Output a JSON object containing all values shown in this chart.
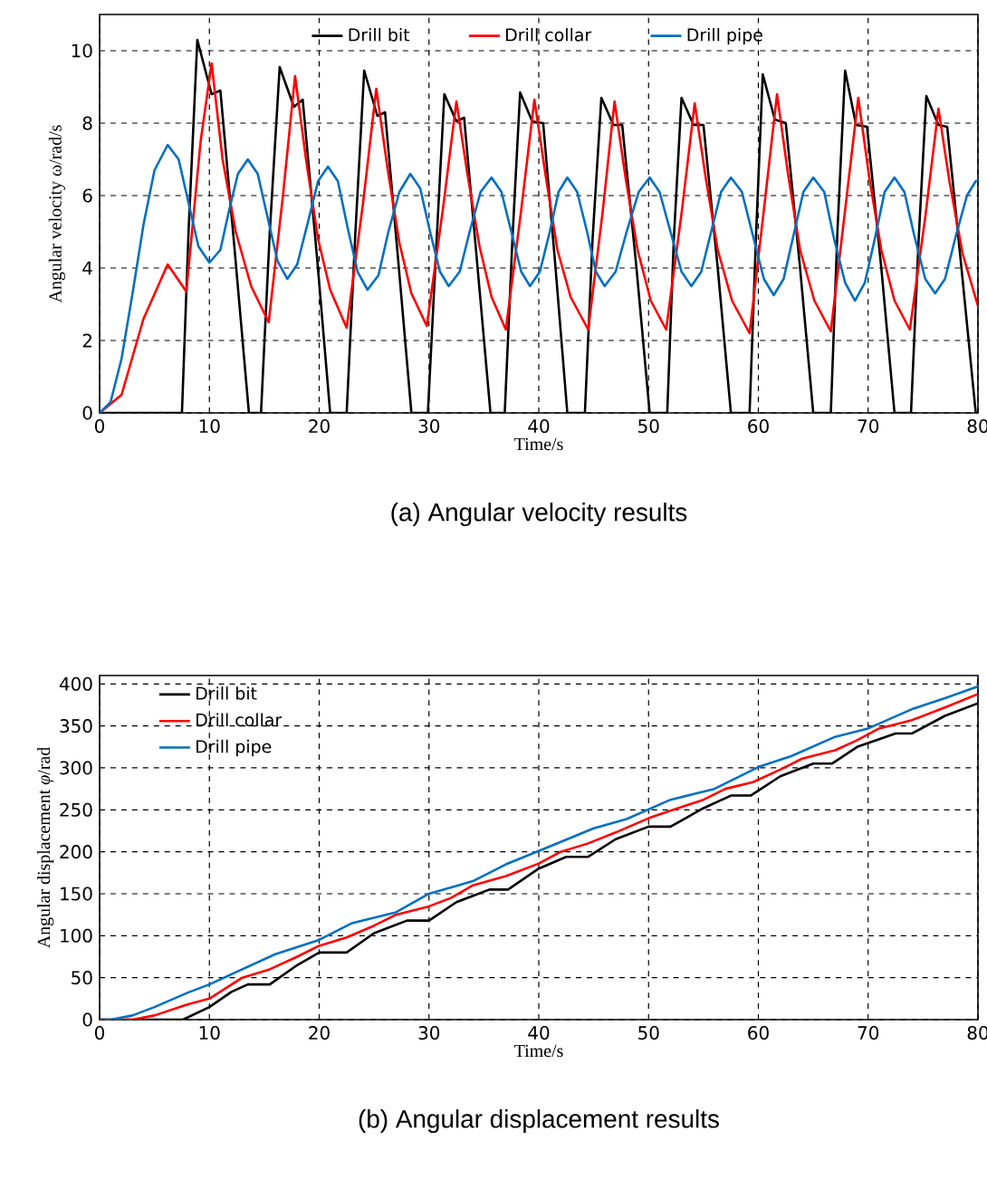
{
  "chart_data": [
    {
      "type": "line",
      "title": "(a) Angular velocity results",
      "xlabel": "Time/s",
      "ylabel": "Angular  velocity  ω/rad/s",
      "xlim": [
        0,
        80
      ],
      "ylim": [
        0,
        11
      ],
      "xticks": [
        0,
        10,
        20,
        30,
        40,
        50,
        60,
        70,
        80
      ],
      "yticks": [
        0,
        2,
        4,
        6,
        8,
        10
      ],
      "grid": true,
      "legend": "top",
      "line_style": "solid",
      "series": [
        {
          "name": "Drill bit",
          "color": "#000000",
          "x": [
            0,
            7.5,
            8.1,
            8.9,
            10.2,
            11.0,
            12.3,
            13.6,
            14.7,
            15.5,
            16.4,
            17.7,
            18.5,
            19.8,
            21.0,
            22.5,
            23.3,
            24.1,
            25.3,
            26.0,
            27.2,
            28.4,
            29.9,
            30.7,
            31.4,
            32.5,
            33.2,
            34.4,
            35.6,
            36.9,
            37.6,
            38.3,
            39.4,
            40.4,
            41.5,
            42.6,
            44.2,
            44.9,
            45.7,
            46.8,
            47.6,
            48.9,
            50.1,
            51.7,
            52.3,
            53.0,
            54.1,
            55.0,
            56.3,
            57.5,
            59.2,
            59.8,
            60.4,
            61.5,
            62.5,
            63.8,
            65.0,
            66.6,
            67.2,
            67.9,
            68.9,
            69.9,
            71.2,
            72.4,
            73.9,
            74.6,
            75.3,
            76.4,
            77.2,
            78.5,
            79.8,
            80
          ],
          "values": [
            0,
            0,
            5,
            10.3,
            8.8,
            8.9,
            4.5,
            0,
            0,
            5,
            9.55,
            8.45,
            8.65,
            4.3,
            0,
            0,
            5,
            9.45,
            8.2,
            8.3,
            4.2,
            0,
            0,
            4.8,
            8.8,
            8.05,
            8.15,
            4.1,
            0,
            0,
            4.8,
            8.85,
            8.05,
            8.0,
            4.1,
            0,
            0,
            4.8,
            8.7,
            7.95,
            7.95,
            4.0,
            0,
            0,
            4.8,
            8.7,
            7.95,
            7.95,
            4.0,
            0,
            0,
            5,
            9.35,
            8.1,
            8.0,
            4.0,
            0,
            0,
            5,
            9.45,
            7.95,
            7.9,
            4.0,
            0,
            0,
            4.8,
            8.75,
            7.95,
            7.9,
            4.0,
            0,
            0
          ]
        },
        {
          "name": "Drill collar",
          "color": "#ff0000",
          "x": [
            0,
            2,
            4,
            6.2,
            7.9,
            9.2,
            10.2,
            11.2,
            12.4,
            13.8,
            15.4,
            16.7,
            17.8,
            18.8,
            19.9,
            21.0,
            22.5,
            24.0,
            25.2,
            26.2,
            27.3,
            28.4,
            29.8,
            31.3,
            32.5,
            33.5,
            34.6,
            35.7,
            37.0,
            38.4,
            39.6,
            40.6,
            41.7,
            42.9,
            44.5,
            45.8,
            46.9,
            47.9,
            49.0,
            50.2,
            51.6,
            53.0,
            54.2,
            55.2,
            56.3,
            57.6,
            59.2,
            60.5,
            61.7,
            62.7,
            63.8,
            65.1,
            66.6,
            67.9,
            69.1,
            70.1,
            71.2,
            72.4,
            73.8,
            75.2,
            76.4,
            77.4,
            78.6,
            80
          ],
          "values": [
            0,
            0.5,
            2.6,
            4.1,
            3.35,
            7.5,
            9.65,
            7.0,
            5.0,
            3.5,
            2.5,
            6.0,
            9.3,
            7.0,
            4.8,
            3.4,
            2.35,
            5.8,
            8.95,
            6.8,
            4.7,
            3.3,
            2.4,
            5.7,
            8.6,
            6.6,
            4.6,
            3.2,
            2.3,
            5.6,
            8.65,
            6.6,
            4.5,
            3.2,
            2.3,
            5.5,
            8.6,
            6.5,
            4.5,
            3.1,
            2.3,
            5.5,
            8.55,
            6.5,
            4.5,
            3.1,
            2.2,
            5.6,
            8.8,
            6.6,
            4.5,
            3.1,
            2.25,
            5.6,
            8.7,
            6.5,
            4.5,
            3.1,
            2.3,
            5.4,
            8.4,
            6.4,
            4.4,
            2.95
          ]
        },
        {
          "name": "Drill pipe",
          "color": "#0070c0",
          "x": [
            0,
            1,
            2,
            3,
            4,
            5,
            6.2,
            7.2,
            8.1,
            9.0,
            10.0,
            11,
            11.8,
            12.6,
            13.5,
            14.4,
            15.3,
            16.2,
            17.1,
            18.0,
            19.0,
            19.9,
            20.8,
            21.7,
            22.6,
            23.5,
            24.4,
            25.4,
            26.3,
            27.3,
            28.3,
            29.2,
            30.1,
            31.0,
            31.8,
            32.8,
            33.7,
            34.7,
            35.7,
            36.6,
            37.5,
            38.4,
            39.2,
            40.1,
            41.0,
            41.8,
            42.6,
            43.5,
            44.4,
            45.2,
            46.0,
            47.0,
            48.0,
            49.1,
            50.1,
            51.0,
            52.0,
            53.0,
            53.9,
            54.8,
            55.7,
            56.6,
            57.5,
            58.5,
            59.5,
            60.5,
            61.4,
            62.3,
            63.2,
            64.1,
            65.0,
            66.0,
            66.9,
            67.9,
            68.8,
            69.7,
            70.6,
            71.5,
            72.4,
            73.3,
            74.2,
            75.2,
            76.1,
            77.0,
            78.0,
            79.0,
            79.8,
            80
          ],
          "values": [
            0,
            0.3,
            1.5,
            3.3,
            5.2,
            6.7,
            7.4,
            7.0,
            5.8,
            4.6,
            4.15,
            4.5,
            5.6,
            6.6,
            7.0,
            6.6,
            5.4,
            4.2,
            3.7,
            4.1,
            5.3,
            6.4,
            6.8,
            6.4,
            5.1,
            3.9,
            3.4,
            3.8,
            5.0,
            6.1,
            6.6,
            6.2,
            5.0,
            3.9,
            3.5,
            3.9,
            5.0,
            6.1,
            6.5,
            6.1,
            5.0,
            3.9,
            3.5,
            3.9,
            5.0,
            6.1,
            6.5,
            6.1,
            5.0,
            3.9,
            3.5,
            3.9,
            5.0,
            6.1,
            6.5,
            6.1,
            5.0,
            3.9,
            3.5,
            3.9,
            5.0,
            6.1,
            6.5,
            6.1,
            4.9,
            3.7,
            3.25,
            3.7,
            4.9,
            6.1,
            6.5,
            6.1,
            4.8,
            3.6,
            3.1,
            3.6,
            4.8,
            6.1,
            6.5,
            6.1,
            4.9,
            3.7,
            3.3,
            3.7,
            4.9,
            6.0,
            6.4,
            6.4
          ]
        }
      ]
    },
    {
      "type": "line",
      "title": "(b) Angular displacement results",
      "xlabel": "Time/s",
      "ylabel": "Angular  displacement  *φ*/rad",
      "xlim": [
        0,
        80
      ],
      "ylim": [
        0,
        410
      ],
      "xticks": [
        0,
        10,
        20,
        30,
        40,
        50,
        60,
        70,
        80
      ],
      "yticks": [
        0,
        50,
        100,
        150,
        200,
        250,
        300,
        350,
        400
      ],
      "grid": true,
      "legend": "top left",
      "line_style": "solid",
      "series": [
        {
          "name": "Drill bit",
          "color": "#000000",
          "x": [
            0,
            7.6,
            10,
            12,
            13.5,
            15.5,
            18,
            20,
            22.5,
            25,
            28,
            30,
            32.5,
            35.5,
            37.2,
            40,
            42.5,
            44.5,
            47,
            50,
            52,
            55,
            57.5,
            59.3,
            62,
            65,
            66.7,
            69,
            72.5,
            74,
            77,
            80
          ],
          "values": [
            0,
            0,
            15,
            33,
            42,
            42,
            65,
            80,
            80,
            103,
            118,
            118,
            140,
            155,
            155,
            180,
            194,
            194,
            215,
            230,
            230,
            252,
            267,
            267,
            290,
            305,
            305,
            325,
            341,
            341,
            362,
            377
          ]
        },
        {
          "name": "Drill collar",
          "color": "#ff0000",
          "x": [
            0,
            3,
            5,
            8,
            10,
            13,
            15.5,
            18,
            20,
            22.5,
            25,
            27,
            30,
            32,
            34,
            37,
            40,
            42,
            44.5,
            47,
            50,
            52,
            55,
            57,
            59.5,
            62,
            64,
            67,
            69,
            71,
            74,
            77,
            80
          ],
          "values": [
            0,
            0,
            5,
            18,
            25,
            50,
            60,
            75,
            88,
            98,
            112,
            125,
            135,
            145,
            160,
            171,
            186,
            200,
            210,
            223,
            240,
            249,
            262,
            275,
            283,
            298,
            311,
            321,
            333,
            347,
            357,
            372,
            388
          ]
        },
        {
          "name": "Drill pipe",
          "color": "#0070c0",
          "x": [
            0,
            1,
            3,
            5,
            8,
            10,
            13,
            16,
            20,
            23,
            27,
            30,
            34,
            37,
            40,
            45,
            48,
            52,
            56,
            60,
            63,
            67,
            70,
            74,
            77,
            80
          ],
          "values": [
            0,
            0,
            5,
            15,
            32,
            42,
            60,
            78,
            95,
            115,
            128,
            150,
            165,
            185,
            201,
            228,
            239,
            262,
            275,
            301,
            314,
            337,
            347,
            370,
            383,
            397
          ]
        }
      ]
    }
  ]
}
